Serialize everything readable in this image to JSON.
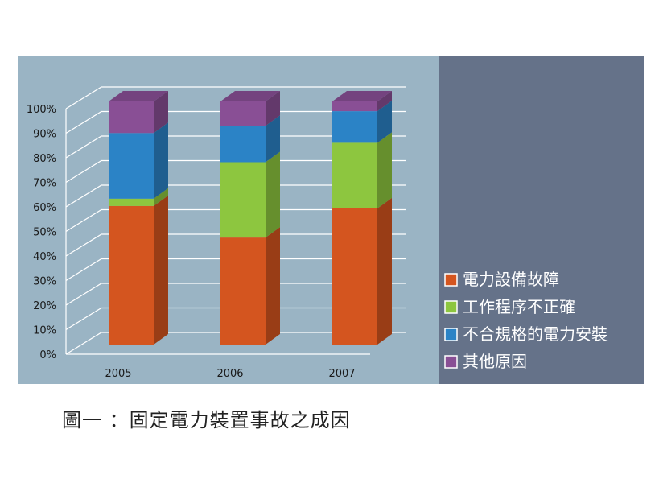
{
  "caption": "圖一 ：固定電力裝置事故之成因",
  "chart_data": {
    "type": "bar",
    "stacked": true,
    "percent": true,
    "title": "",
    "xlabel": "",
    "ylabel": "",
    "ylim": [
      0,
      100
    ],
    "y_ticks": [
      "0%",
      "10%",
      "20%",
      "30%",
      "40%",
      "50%",
      "60%",
      "70%",
      "80%",
      "90%",
      "100%"
    ],
    "categories": [
      "2005",
      "2006",
      "2007"
    ],
    "grid": true,
    "legend_position": "right",
    "series": [
      {
        "name": "電力設備故障",
        "color": "#d4551f",
        "values": [
          57,
          44,
          56
        ]
      },
      {
        "name": "工作程序不正確",
        "color": "#8dc63f",
        "values": [
          3,
          31,
          27
        ]
      },
      {
        "name": "不合規格的電力安裝",
        "color": "#2b83c6",
        "values": [
          27,
          15,
          13
        ]
      },
      {
        "name": "其他原因",
        "color": "#894f95",
        "values": [
          13,
          10,
          4
        ]
      }
    ]
  },
  "colors": {
    "plot_background": "#9ab4c4",
    "legend_background": "#657289",
    "gridline": "#ffffff"
  }
}
